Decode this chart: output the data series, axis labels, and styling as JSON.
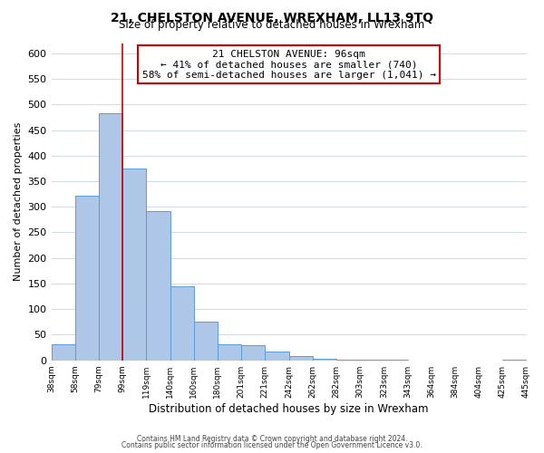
{
  "title_line1": "21, CHELSTON AVENUE, WREXHAM, LL13 9TQ",
  "title_line2": "Size of property relative to detached houses in Wrexham",
  "xlabel": "Distribution of detached houses by size in Wrexham",
  "ylabel": "Number of detached properties",
  "bar_values": [
    32,
    322,
    482,
    374,
    292,
    144,
    75,
    32,
    29,
    17,
    8,
    3,
    2,
    1,
    1,
    0,
    0,
    0,
    0,
    1
  ],
  "bin_labels": [
    "38sqm",
    "58sqm",
    "79sqm",
    "99sqm",
    "119sqm",
    "140sqm",
    "160sqm",
    "180sqm",
    "201sqm",
    "221sqm",
    "242sqm",
    "262sqm",
    "282sqm",
    "303sqm",
    "323sqm",
    "343sqm",
    "364sqm",
    "384sqm",
    "404sqm",
    "425sqm",
    "445sqm"
  ],
  "bar_color": "#aec6e8",
  "bar_edge_color": "#5b9bd5",
  "vline_x_bin": 3,
  "vline_color": "#cc0000",
  "annotation_title": "21 CHELSTON AVENUE: 96sqm",
  "annotation_line1": "← 41% of detached houses are smaller (740)",
  "annotation_line2": "58% of semi-detached houses are larger (1,041) →",
  "annotation_box_color": "#ffffff",
  "annotation_box_edge": "#cc0000",
  "ylim": [
    0,
    620
  ],
  "yticks": [
    0,
    50,
    100,
    150,
    200,
    250,
    300,
    350,
    400,
    450,
    500,
    550,
    600
  ],
  "footnote1": "Contains HM Land Registry data © Crown copyright and database right 2024.",
  "footnote2": "Contains public sector information licensed under the Open Government Licence v3.0.",
  "background_color": "#ffffff",
  "grid_color": "#d0dce8",
  "title_fontsize": 10,
  "subtitle_fontsize": 8.5,
  "ylabel_fontsize": 8,
  "xlabel_fontsize": 8.5
}
